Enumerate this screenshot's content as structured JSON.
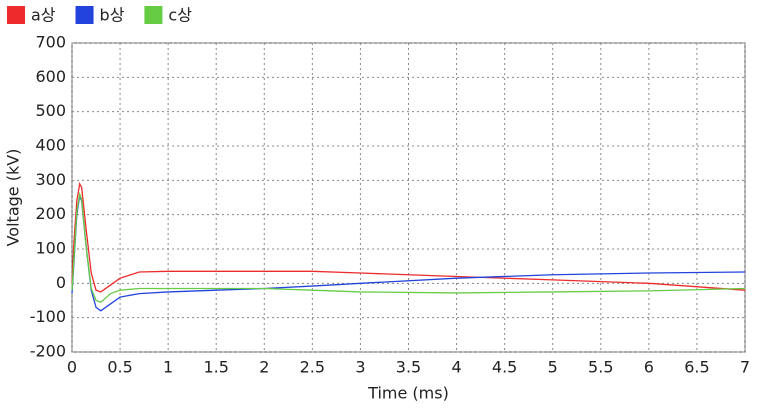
{
  "chart_data": {
    "type": "line",
    "x_label": "Time (ms)",
    "y_label": "Voltage (kV)",
    "x": [
      0,
      0.02,
      0.05,
      0.08,
      0.1,
      0.15,
      0.2,
      0.25,
      0.3,
      0.4,
      0.5,
      0.7,
      1,
      1.5,
      2,
      2.5,
      3,
      4,
      5,
      6,
      7
    ],
    "series": [
      {
        "name": "a상",
        "color": "#ee2b2b",
        "values": [
          0,
          120,
          240,
          290,
          280,
          150,
          30,
          -20,
          -25,
          -5,
          15,
          33,
          35,
          35,
          35,
          35,
          30,
          20,
          10,
          0,
          -20
        ]
      },
      {
        "name": "b상",
        "color": "#2244dd",
        "values": [
          -30,
          60,
          200,
          255,
          240,
          100,
          -20,
          -70,
          -80,
          -60,
          -40,
          -30,
          -25,
          -20,
          -15,
          -8,
          0,
          15,
          25,
          30,
          33
        ]
      },
      {
        "name": "c상",
        "color": "#66cc44",
        "values": [
          -20,
          70,
          210,
          260,
          245,
          100,
          -15,
          -50,
          -55,
          -30,
          -20,
          -15,
          -15,
          -15,
          -15,
          -20,
          -25,
          -28,
          -25,
          -22,
          -15
        ]
      }
    ],
    "xlim": [
      0,
      7
    ],
    "xticks": [
      0,
      0.5,
      1,
      1.5,
      2,
      2.5,
      3,
      3.5,
      4,
      4.5,
      5,
      5.5,
      6,
      6.5,
      7
    ],
    "ylim": [
      -200,
      700
    ],
    "yticks": [
      -200,
      -100,
      0,
      100,
      200,
      300,
      400,
      500,
      600,
      700
    ],
    "grid": true
  }
}
